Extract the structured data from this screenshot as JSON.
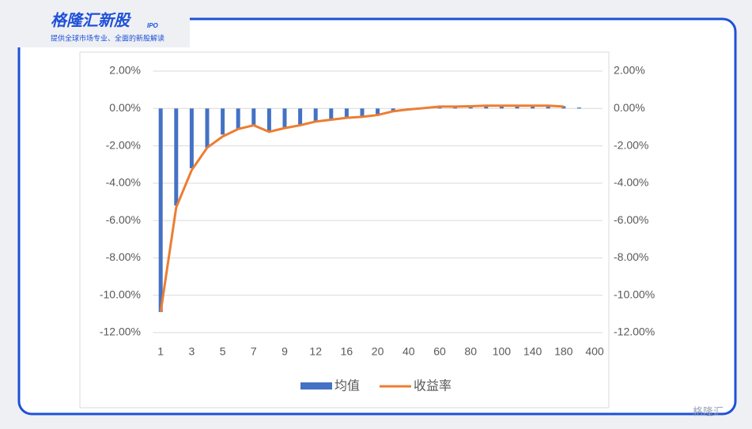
{
  "header": {
    "brand": "格隆汇新股",
    "brand_tag": "IPO",
    "subtitle": "提供全球市场专业、全面的新股解读"
  },
  "watermark": "格隆汇",
  "chart_data": {
    "type": "bar",
    "categories": [
      "1",
      null,
      "3",
      null,
      "5",
      null,
      "7",
      null,
      "9",
      null,
      "12",
      null,
      "16",
      null,
      "20",
      null,
      "40",
      null,
      "60",
      null,
      "80",
      null,
      "100",
      null,
      "140",
      null,
      "180",
      null,
      "400"
    ],
    "series": [
      {
        "name": "均值",
        "type": "bar",
        "color": "#4472c4",
        "axis": "y",
        "values": [
          -10.9,
          -5.2,
          -3.2,
          -2.1,
          -1.4,
          -1.1,
          -0.9,
          -1.2,
          -1.0,
          -0.9,
          -0.7,
          -0.6,
          -0.5,
          -0.45,
          -0.35,
          -0.2,
          -0.05,
          0.0,
          0.05,
          0.1,
          0.1,
          0.15,
          0.15,
          0.15,
          0.15,
          0.15,
          0.12,
          0.05,
          null
        ]
      },
      {
        "name": "收益率",
        "type": "line",
        "color": "#ed7d31",
        "axis": "y2",
        "values": [
          -10.9,
          -5.3,
          -3.3,
          -2.1,
          -1.5,
          -1.1,
          -0.9,
          -1.25,
          -1.05,
          -0.9,
          -0.7,
          -0.6,
          -0.5,
          -0.45,
          -0.35,
          -0.15,
          -0.05,
          0.02,
          0.1,
          0.1,
          0.12,
          0.15,
          0.15,
          0.15,
          0.15,
          0.15,
          0.1,
          null,
          null
        ]
      }
    ],
    "ylim": [
      -12,
      2
    ],
    "yticks": [
      {
        "value": 2,
        "label": "2.00%"
      },
      {
        "value": 0,
        "label": "0.00%"
      },
      {
        "value": -2,
        "label": "-2.00%"
      },
      {
        "value": -4,
        "label": "-4.00%"
      },
      {
        "value": -6,
        "label": "-6.00%"
      },
      {
        "value": -8,
        "label": "-8.00%"
      },
      {
        "value": -10,
        "label": "-10.00%"
      },
      {
        "value": -12,
        "label": "-12.00%"
      }
    ],
    "y2lim": [
      -12,
      2
    ],
    "y2ticks": [
      {
        "value": 2,
        "label": "2.00%"
      },
      {
        "value": 0,
        "label": "0.00%"
      },
      {
        "value": -2,
        "label": "-2.00%"
      },
      {
        "value": -4,
        "label": "-4.00%"
      },
      {
        "value": -6,
        "label": "-6.00%"
      },
      {
        "value": -8,
        "label": "-8.00%"
      },
      {
        "value": -10,
        "label": "-10.00%"
      },
      {
        "value": -12,
        "label": "-12.00%"
      }
    ],
    "grid": true,
    "legend": "bottom"
  }
}
